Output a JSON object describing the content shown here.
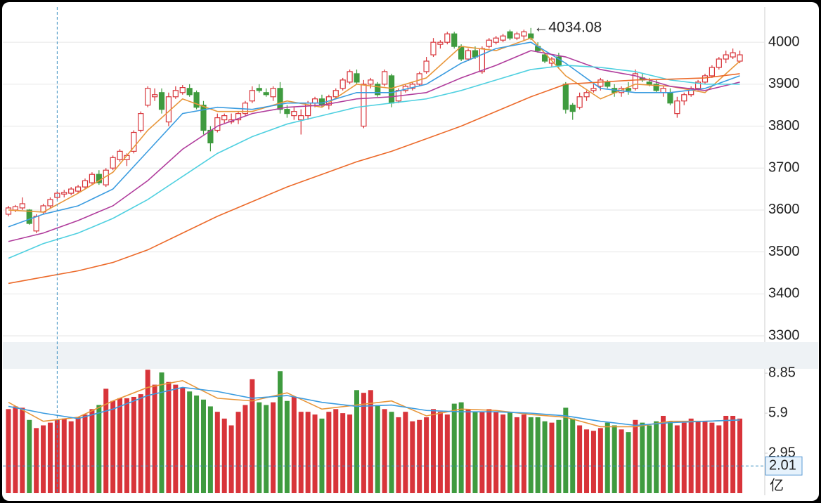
{
  "chart_data": [
    {
      "type": "candlestick",
      "up_color": "#d8343a",
      "down_color": "#3f9b3f",
      "grid": true,
      "ylim": [
        3285,
        4084
      ],
      "yticks": [
        3300,
        3400,
        3500,
        3600,
        3700,
        3800,
        3900,
        4000
      ],
      "annotation": "←4034.08",
      "crosshair_index": 7,
      "ohlc": [
        [
          3590,
          3610,
          3585,
          3605
        ],
        [
          3600,
          3612,
          3595,
          3608
        ],
        [
          3605,
          3630,
          3600,
          3615
        ],
        [
          3600,
          3602,
          3565,
          3568
        ],
        [
          3550,
          3590,
          3545,
          3585
        ],
        [
          3595,
          3615,
          3590,
          3610
        ],
        [
          3610,
          3630,
          3605,
          3625
        ],
        [
          3630,
          3645,
          3625,
          3640
        ],
        [
          3638,
          3648,
          3630,
          3642
        ],
        [
          3640,
          3655,
          3635,
          3650
        ],
        [
          3645,
          3660,
          3640,
          3655
        ],
        [
          3655,
          3675,
          3650,
          3670
        ],
        [
          3665,
          3690,
          3660,
          3685
        ],
        [
          3685,
          3695,
          3660,
          3665
        ],
        [
          3660,
          3700,
          3655,
          3695
        ],
        [
          3700,
          3730,
          3695,
          3725
        ],
        [
          3720,
          3745,
          3715,
          3740
        ],
        [
          3720,
          3735,
          3705,
          3730
        ],
        [
          3740,
          3790,
          3735,
          3785
        ],
        [
          3790,
          3835,
          3785,
          3830
        ],
        [
          3850,
          3895,
          3845,
          3890
        ],
        [
          3870,
          3890,
          3860,
          3875
        ],
        [
          3880,
          3890,
          3830,
          3840
        ],
        [
          3810,
          3880,
          3800,
          3870
        ],
        [
          3870,
          3895,
          3865,
          3885
        ],
        [
          3880,
          3898,
          3875,
          3892
        ],
        [
          3890,
          3900,
          3870,
          3875
        ],
        [
          3880,
          3885,
          3840,
          3845
        ],
        [
          3850,
          3860,
          3780,
          3790
        ],
        [
          3790,
          3800,
          3740,
          3760
        ],
        [
          3790,
          3830,
          3785,
          3820
        ],
        [
          3815,
          3830,
          3805,
          3825
        ],
        [
          3810,
          3830,
          3805,
          3815
        ],
        [
          3815,
          3835,
          3805,
          3830
        ],
        [
          3830,
          3860,
          3825,
          3855
        ],
        [
          3860,
          3895,
          3855,
          3885
        ],
        [
          3890,
          3900,
          3880,
          3885
        ],
        [
          3880,
          3890,
          3870,
          3875
        ],
        [
          3870,
          3895,
          3860,
          3890
        ],
        [
          3890,
          3905,
          3830,
          3840
        ],
        [
          3840,
          3850,
          3820,
          3830
        ],
        [
          3825,
          3845,
          3815,
          3835
        ],
        [
          3815,
          3840,
          3780,
          3825
        ],
        [
          3825,
          3860,
          3815,
          3855
        ],
        [
          3855,
          3870,
          3845,
          3865
        ],
        [
          3865,
          3875,
          3845,
          3850
        ],
        [
          3850,
          3875,
          3840,
          3870
        ],
        [
          3870,
          3890,
          3865,
          3885
        ],
        [
          3890,
          3915,
          3885,
          3910
        ],
        [
          3905,
          3935,
          3900,
          3930
        ],
        [
          3925,
          3935,
          3900,
          3905
        ],
        [
          3800,
          3910,
          3795,
          3900
        ],
        [
          3900,
          3915,
          3890,
          3910
        ],
        [
          3900,
          3905,
          3870,
          3875
        ],
        [
          3900,
          3935,
          3895,
          3930
        ],
        [
          3920,
          3925,
          3845,
          3855
        ],
        [
          3860,
          3890,
          3855,
          3885
        ],
        [
          3885,
          3900,
          3880,
          3895
        ],
        [
          3890,
          3905,
          3885,
          3900
        ],
        [
          3900,
          3930,
          3895,
          3925
        ],
        [
          3930,
          3965,
          3925,
          3955
        ],
        [
          3970,
          4010,
          3965,
          4000
        ],
        [
          3995,
          4005,
          3985,
          4000
        ],
        [
          4000,
          4025,
          3995,
          4020
        ],
        [
          4020,
          4025,
          3985,
          3990
        ],
        [
          3990,
          3995,
          3955,
          3960
        ],
        [
          3960,
          3985,
          3955,
          3980
        ],
        [
          3980,
          3990,
          3960,
          3965
        ],
        [
          3930,
          3990,
          3925,
          3985
        ],
        [
          3990,
          4010,
          3985,
          4005
        ],
        [
          4000,
          4015,
          3995,
          4010
        ],
        [
          4005,
          4020,
          4000,
          4015
        ],
        [
          4025,
          4030,
          4005,
          4010
        ],
        [
          4010,
          4025,
          4005,
          4020
        ],
        [
          4015,
          4030,
          4005,
          4025
        ],
        [
          4020,
          4034.08,
          4005,
          4010
        ],
        [
          3990,
          4000,
          3975,
          3980
        ],
        [
          3970,
          3975,
          3950,
          3955
        ],
        [
          3950,
          3965,
          3940,
          3960
        ],
        [
          3965,
          3975,
          3940,
          3945
        ],
        [
          3900,
          3905,
          3830,
          3840
        ],
        [
          3850,
          3855,
          3815,
          3835
        ],
        [
          3845,
          3880,
          3840,
          3870
        ],
        [
          3870,
          3885,
          3860,
          3880
        ],
        [
          3885,
          3900,
          3880,
          3890
        ],
        [
          3895,
          3915,
          3885,
          3910
        ],
        [
          3905,
          3910,
          3890,
          3895
        ],
        [
          3890,
          3900,
          3870,
          3880
        ],
        [
          3880,
          3895,
          3870,
          3890
        ],
        [
          3890,
          3905,
          3875,
          3885
        ],
        [
          3890,
          3935,
          3885,
          3925
        ],
        [
          3915,
          3925,
          3905,
          3910
        ],
        [
          3905,
          3915,
          3895,
          3900
        ],
        [
          3900,
          3910,
          3880,
          3885
        ],
        [
          3880,
          3895,
          3870,
          3890
        ],
        [
          3880,
          3890,
          3850,
          3855
        ],
        [
          3830,
          3870,
          3820,
          3860
        ],
        [
          3860,
          3880,
          3850,
          3875
        ],
        [
          3875,
          3895,
          3870,
          3890
        ],
        [
          3890,
          3910,
          3885,
          3905
        ],
        [
          3905,
          3925,
          3900,
          3920
        ],
        [
          3920,
          3945,
          3915,
          3940
        ],
        [
          3940,
          3965,
          3935,
          3960
        ],
        [
          3960,
          3980,
          3950,
          3970
        ],
        [
          3965,
          3985,
          3960,
          3975
        ],
        [
          3955,
          3980,
          3950,
          3970
        ]
      ],
      "lines": [
        {
          "color": "#e8963a",
          "x": [
            0,
            5,
            10,
            15,
            20,
            25,
            30,
            35,
            40,
            45,
            50,
            55,
            60,
            65,
            70,
            75,
            80,
            85,
            90,
            95,
            100,
            105
          ],
          "values": [
            3600,
            3595,
            3640,
            3690,
            3790,
            3865,
            3835,
            3835,
            3860,
            3845,
            3900,
            3890,
            3915,
            3990,
            3980,
            4010,
            3920,
            3865,
            3900,
            3895,
            3880,
            3955
          ]
        },
        {
          "color": "#3b9ce0",
          "x": [
            0,
            5,
            10,
            15,
            20,
            25,
            30,
            35,
            40,
            45,
            50,
            55,
            60,
            65,
            70,
            75,
            80,
            85,
            90,
            95,
            100,
            105
          ],
          "values": [
            3560,
            3590,
            3610,
            3650,
            3740,
            3830,
            3845,
            3840,
            3855,
            3855,
            3880,
            3880,
            3900,
            3950,
            3985,
            4000,
            3950,
            3890,
            3880,
            3880,
            3890,
            3920
          ]
        },
        {
          "color": "#b03c9c",
          "x": [
            0,
            5,
            10,
            15,
            20,
            25,
            30,
            35,
            40,
            45,
            50,
            55,
            60,
            65,
            70,
            75,
            80,
            85,
            90,
            95,
            100,
            105
          ],
          "values": [
            3525,
            3545,
            3575,
            3610,
            3670,
            3745,
            3800,
            3830,
            3845,
            3850,
            3865,
            3870,
            3880,
            3915,
            3945,
            3980,
            3965,
            3935,
            3920,
            3895,
            3885,
            3905
          ]
        },
        {
          "color": "#4fd0e0",
          "x": [
            0,
            5,
            10,
            15,
            20,
            25,
            30,
            35,
            40,
            45,
            50,
            55,
            60,
            65,
            70,
            75,
            80,
            85,
            90,
            95,
            100,
            105
          ],
          "values": [
            3485,
            3520,
            3545,
            3580,
            3625,
            3680,
            3735,
            3775,
            3805,
            3825,
            3845,
            3855,
            3865,
            3885,
            3910,
            3935,
            3945,
            3940,
            3930,
            3910,
            3900,
            3900
          ]
        },
        {
          "color": "#ec6a2a",
          "x": [
            0,
            5,
            10,
            15,
            20,
            25,
            30,
            35,
            40,
            45,
            50,
            55,
            60,
            65,
            70,
            75,
            80,
            85,
            90,
            95,
            100,
            105
          ],
          "values": [
            3425,
            3440,
            3455,
            3475,
            3505,
            3545,
            3585,
            3620,
            3655,
            3685,
            3715,
            3740,
            3770,
            3800,
            3835,
            3870,
            3900,
            3905,
            3910,
            3912,
            3915,
            3925
          ]
        }
      ]
    },
    {
      "type": "volume",
      "unit": "亿",
      "ylim": [
        0,
        9.17
      ],
      "yticks": [
        2.95,
        5.9,
        8.85
      ],
      "crosshair_value": 2.01,
      "values": [
        6.2,
        6.4,
        6.3,
        5.4,
        4.8,
        5.0,
        5.2,
        5.4,
        5.5,
        5.3,
        5.6,
        5.8,
        6.2,
        6.5,
        7.7,
        6.8,
        7.0,
        7.0,
        7.1,
        7.3,
        9.1,
        8.0,
        8.9,
        8.2,
        8.0,
        7.8,
        7.5,
        7.2,
        6.9,
        6.4,
        6.0,
        5.5,
        5.0,
        6.0,
        6.5,
        8.4,
        6.7,
        6.5,
        6.7,
        9.0,
        6.8,
        7.1,
        6.0,
        6.0,
        5.8,
        5.5,
        6.0,
        6.2,
        5.9,
        5.8,
        7.6,
        7.4,
        7.6,
        6.5,
        6.2,
        6.0,
        5.6,
        6.0,
        5.3,
        5.4,
        5.6,
        6.2,
        6.0,
        5.8,
        6.6,
        6.7,
        6.2,
        6.0,
        6.0,
        6.2,
        6.0,
        5.8,
        6.0,
        5.6,
        5.8,
        5.6,
        5.6,
        5.3,
        5.2,
        5.4,
        6.3,
        5.5,
        5.0,
        4.7,
        4.6,
        4.8,
        5.2,
        5.0,
        4.7,
        4.5,
        5.4,
        5.2,
        5.0,
        5.3,
        5.7,
        5.3,
        5.0,
        5.2,
        5.5,
        5.3,
        5.3,
        5.2,
        5.0,
        5.7,
        5.7,
        5.5
      ],
      "lines": [
        {
          "color": "#e8963a",
          "x": [
            0,
            5,
            10,
            15,
            20,
            25,
            30,
            35,
            40,
            45,
            50,
            55,
            60,
            65,
            70,
            75,
            80,
            85,
            90,
            95,
            100,
            105
          ],
          "values": [
            6.7,
            5.3,
            5.6,
            6.8,
            7.8,
            8.3,
            7.0,
            6.8,
            7.4,
            6.2,
            6.5,
            6.8,
            5.7,
            6.2,
            6.1,
            5.8,
            5.6,
            4.9,
            4.9,
            5.3,
            5.3,
            5.4
          ]
        },
        {
          "color": "#3b9ce0",
          "x": [
            0,
            5,
            10,
            15,
            20,
            25,
            30,
            35,
            40,
            45,
            50,
            55,
            60,
            65,
            70,
            75,
            80,
            85,
            90,
            95,
            100,
            105
          ],
          "values": [
            6.4,
            5.9,
            5.5,
            6.2,
            7.2,
            7.8,
            7.5,
            7.0,
            7.2,
            6.7,
            6.4,
            6.5,
            6.1,
            6.0,
            6.0,
            5.9,
            5.7,
            5.3,
            5.0,
            5.2,
            5.3,
            5.4
          ]
        }
      ]
    }
  ]
}
